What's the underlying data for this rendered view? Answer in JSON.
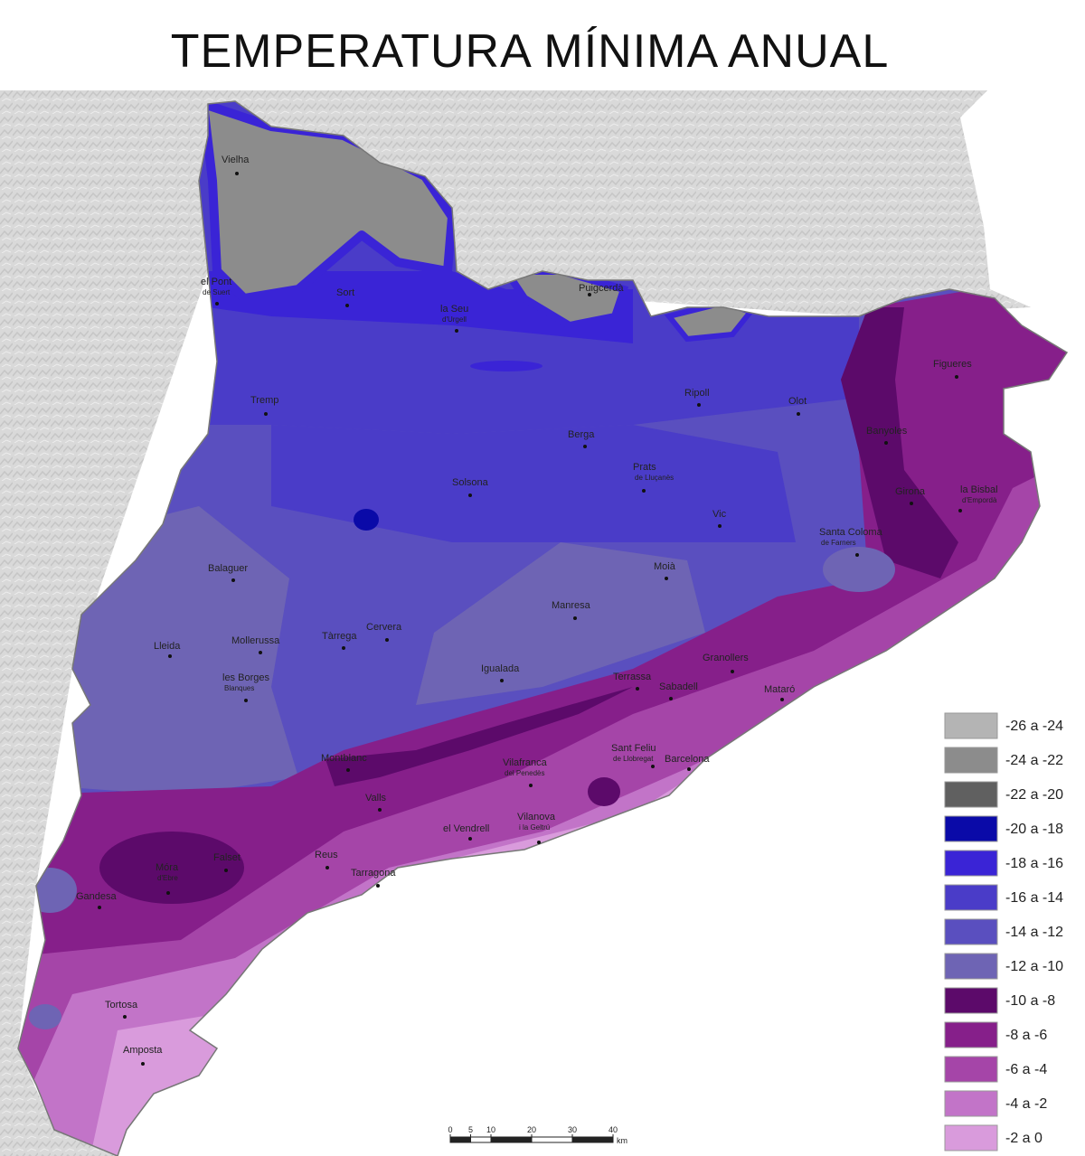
{
  "title": "TEMPERATURA MÍNIMA ANUAL",
  "places": [
    {
      "name": "Vielha"
    },
    {
      "name": "el Pont",
      "subname": "de Suert"
    },
    {
      "name": "Sort"
    },
    {
      "name": "la Seu",
      "subname": "d'Urgell"
    },
    {
      "name": "Puigcerdà"
    },
    {
      "name": "Tremp"
    },
    {
      "name": "Ripoll"
    },
    {
      "name": "Olot"
    },
    {
      "name": "Figueres"
    },
    {
      "name": "Berga"
    },
    {
      "name": "Banyoles"
    },
    {
      "name": "Solsona"
    },
    {
      "name": "Prats",
      "subname": "de Lluçanès"
    },
    {
      "name": "Girona"
    },
    {
      "name": "la Bisbal",
      "subname": "d'Empordà"
    },
    {
      "name": "Vic"
    },
    {
      "name": "Santa Coloma",
      "subname": "de Farners"
    },
    {
      "name": "Balaguer"
    },
    {
      "name": "Moià"
    },
    {
      "name": "Manresa"
    },
    {
      "name": "Lleida"
    },
    {
      "name": "Mollerussa"
    },
    {
      "name": "Tàrrega"
    },
    {
      "name": "Cervera"
    },
    {
      "name": "les Borges",
      "subname": "Blanques"
    },
    {
      "name": "Igualada"
    },
    {
      "name": "Terrassa"
    },
    {
      "name": "Granollers"
    },
    {
      "name": "Sabadell"
    },
    {
      "name": "Mataró"
    },
    {
      "name": "Montblanc"
    },
    {
      "name": "Sant Feliu",
      "subname": "de Llobregat"
    },
    {
      "name": "Barcelona"
    },
    {
      "name": "Vilafranca",
      "subname": "del Penedès"
    },
    {
      "name": "Valls"
    },
    {
      "name": "el Vendrell"
    },
    {
      "name": "Vilanova",
      "subname": "i la Geltrú"
    },
    {
      "name": "Reus"
    },
    {
      "name": "Tarragona"
    },
    {
      "name": "Falset"
    },
    {
      "name": "Móra",
      "subname": "d'Ebre"
    },
    {
      "name": "Gandesa"
    },
    {
      "name": "Tortosa"
    },
    {
      "name": "Amposta"
    }
  ],
  "legend": [
    {
      "label": "-26 a -24",
      "color": "#b4b4b4"
    },
    {
      "label": "-24 a -22",
      "color": "#8c8c8c"
    },
    {
      "label": "-22 a -20",
      "color": "#606060"
    },
    {
      "label": "-20 a -18",
      "color": "#0a0aa8"
    },
    {
      "label": "-18 a -16",
      "color": "#3a24d6"
    },
    {
      "label": "-16 a -14",
      "color": "#4a3cc8"
    },
    {
      "label": "-14 a -12",
      "color": "#5a4fbf"
    },
    {
      "label": "-12 a -10",
      "color": "#6e64b4"
    },
    {
      "label": "-10 a -8",
      "color": "#5c0a6a"
    },
    {
      "label": "-8 a -6",
      "color": "#861f8a"
    },
    {
      "label": "-6 a -4",
      "color": "#a545a8"
    },
    {
      "label": "-4 a -2",
      "color": "#c274c8"
    },
    {
      "label": "-2 a 0",
      "color": "#d99bdc"
    }
  ],
  "scale_bar": {
    "ticks": [
      0,
      5,
      10,
      20,
      30,
      40
    ],
    "unit": "km"
  }
}
